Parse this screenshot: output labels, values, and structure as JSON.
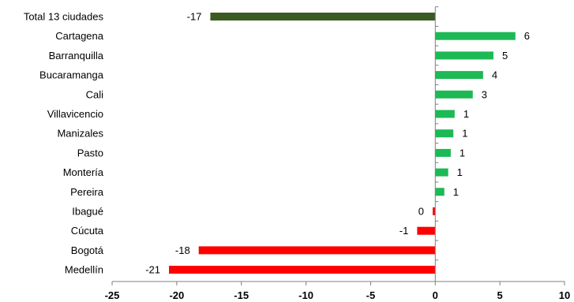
{
  "chart_data": {
    "type": "bar",
    "orientation": "horizontal",
    "categories": [
      "Total 13 ciudades",
      "Cartagena",
      "Barranquilla",
      "Bucaramanga",
      "Cali",
      "Villavicencio",
      "Manizales",
      "Pasto",
      "Montería",
      "Pereira",
      "Ibagué",
      "Cúcuta",
      "Bogotá",
      "Medellín"
    ],
    "values": [
      -17.4,
      6.2,
      4.5,
      3.7,
      2.9,
      1.5,
      1.4,
      1.2,
      1.0,
      0.7,
      -0.2,
      -1.4,
      -18.3,
      -20.6
    ],
    "data_labels": [
      "-17",
      "6",
      "5",
      "4",
      "3",
      "1",
      "1",
      "1",
      "1",
      "1",
      "0",
      "-1",
      "-18",
      "-21"
    ],
    "bar_colors": [
      "#3A5A22",
      "#1DB954",
      "#1DB954",
      "#1DB954",
      "#1DB954",
      "#1DB954",
      "#1DB954",
      "#1DB954",
      "#1DB954",
      "#1DB954",
      "#FF0000",
      "#FF0000",
      "#FF0000",
      "#FF0000"
    ],
    "xlim": [
      -25,
      10
    ],
    "xticks": [
      -25,
      -20,
      -15,
      -10,
      -5,
      0,
      5,
      10
    ],
    "xtick_labels": [
      "-25",
      "-20",
      "-15",
      "-10",
      "-5",
      "0",
      "5",
      "10"
    ],
    "title": "",
    "xlabel": "",
    "ylabel": "",
    "grid": false,
    "legend": "none"
  }
}
